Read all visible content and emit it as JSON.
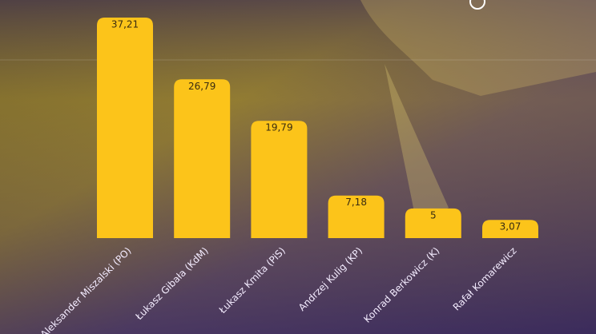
{
  "chart_data": {
    "type": "bar",
    "categories": [
      "Aleksander Miszalski (PO)",
      "Łukasz Gibała (KdM)",
      "Łukasz Kmita (PiS)",
      "Andrzej Kulig (KP)",
      "Konrad Berkowicz (K)",
      "Rafał Komarewicz"
    ],
    "values": [
      37.21,
      26.79,
      19.79,
      7.18,
      5,
      3.07
    ],
    "value_labels": [
      "37,21",
      "26,79",
      "19,79",
      "7,18",
      "5",
      "3,07"
    ],
    "color": "#fcc41a"
  }
}
